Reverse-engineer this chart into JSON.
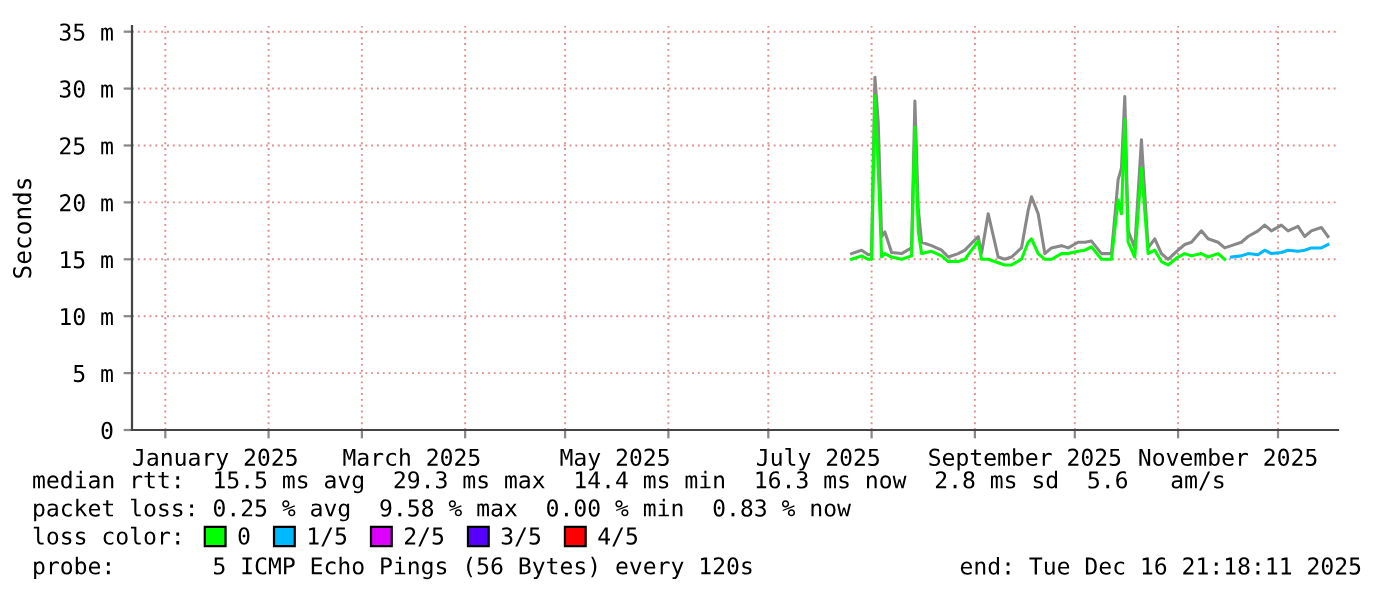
{
  "chart_data": {
    "type": "line",
    "ylabel": "Seconds",
    "x": [
      "2025-07-26",
      "2025-07-29",
      "2025-07-31",
      "2025-08-01",
      "2025-08-02",
      "2025-08-03",
      "2025-08-04",
      "2025-08-05",
      "2025-08-07",
      "2025-08-10",
      "2025-08-13",
      "2025-08-14",
      "2025-08-15",
      "2025-08-16",
      "2025-08-19",
      "2025-08-22",
      "2025-08-24",
      "2025-08-27",
      "2025-08-29",
      "2025-09-02",
      "2025-09-03",
      "2025-09-05",
      "2025-09-08",
      "2025-09-10",
      "2025-09-12",
      "2025-09-15",
      "2025-09-17",
      "2025-09-18",
      "2025-09-20",
      "2025-09-22",
      "2025-09-24",
      "2025-09-27",
      "2025-09-29",
      "2025-10-02",
      "2025-10-04",
      "2025-10-06",
      "2025-10-09",
      "2025-10-12",
      "2025-10-14",
      "2025-10-15",
      "2025-10-16",
      "2025-10-17",
      "2025-10-19",
      "2025-10-21",
      "2025-10-23",
      "2025-10-25",
      "2025-10-27",
      "2025-10-29",
      "2025-11-01",
      "2025-11-03",
      "2025-11-05",
      "2025-11-08",
      "2025-11-10",
      "2025-11-13",
      "2025-11-15",
      "2025-11-17",
      "2025-11-20",
      "2025-11-22",
      "2025-11-25",
      "2025-11-27",
      "2025-11-29",
      "2025-12-02",
      "2025-12-04",
      "2025-12-07",
      "2025-12-09",
      "2025-12-11",
      "2025-12-14",
      "2025-12-16"
    ],
    "series": [
      {
        "color": "#888888",
        "values": [
          15.5,
          15.8,
          15.4,
          15.5,
          31.0,
          27.0,
          17.0,
          17.4,
          15.6,
          15.5,
          16.0,
          28.9,
          19.5,
          16.5,
          16.2,
          15.8,
          15.2,
          15.5,
          15.8,
          17.0,
          15.5,
          19.0,
          15.2,
          15.0,
          15.2,
          16.0,
          19.3,
          20.5,
          19.0,
          15.5,
          16.0,
          16.2,
          16.0,
          16.5,
          16.5,
          16.6,
          15.5,
          15.5,
          22.0,
          23.0,
          29.3,
          17.5,
          16.0,
          25.5,
          16.0,
          16.8,
          15.5,
          15.0,
          15.8,
          16.3,
          16.5,
          17.5,
          16.8,
          16.5,
          16.0,
          16.2,
          16.5,
          17.0,
          17.5,
          18.0,
          17.5,
          18.0,
          17.5,
          17.9,
          17.0,
          17.5,
          17.8,
          17.0
        ]
      },
      {
        "name": "0",
        "color": "#00ff00",
        "values": [
          15.0,
          15.3,
          15.0,
          15.0,
          29.4,
          23.0,
          15.2,
          15.5,
          15.2,
          15.0,
          15.3,
          26.6,
          17.5,
          15.5,
          15.7,
          15.3,
          14.8,
          14.8,
          15.0,
          16.6,
          15.0,
          15.0,
          14.7,
          14.5,
          14.5,
          15.0,
          16.5,
          16.8,
          15.5,
          15.0,
          15.0,
          15.5,
          15.5,
          15.7,
          15.8,
          16.1,
          15.0,
          15.0,
          20.2,
          19.0,
          27.3,
          16.5,
          15.2,
          23.0,
          15.5,
          15.8,
          14.8,
          14.5,
          15.2,
          15.5,
          15.3,
          15.5,
          15.2,
          15.5,
          15.0,
          null,
          null,
          null,
          null,
          null,
          null,
          null,
          null,
          null,
          null,
          null,
          null,
          null
        ]
      },
      {
        "name": "1/5",
        "color": "#00b8ff",
        "values": [
          null,
          null,
          null,
          null,
          null,
          null,
          null,
          null,
          null,
          null,
          null,
          null,
          null,
          null,
          null,
          null,
          null,
          null,
          null,
          null,
          null,
          null,
          null,
          null,
          null,
          null,
          null,
          null,
          null,
          null,
          null,
          null,
          null,
          null,
          null,
          null,
          null,
          null,
          null,
          null,
          null,
          null,
          null,
          null,
          null,
          null,
          null,
          null,
          null,
          null,
          null,
          null,
          null,
          null,
          null,
          15.2,
          15.3,
          15.5,
          15.4,
          15.8,
          15.5,
          15.6,
          15.8,
          15.7,
          15.8,
          16.0,
          16.0,
          16.3
        ]
      },
      {
        "name": "2/5",
        "color": "#dd00ff",
        "values": [
          null,
          null,
          null,
          null,
          null,
          null,
          null,
          null,
          null,
          null,
          null,
          null,
          null,
          null,
          null,
          null,
          null,
          null,
          null,
          null,
          null,
          null,
          null,
          null,
          null,
          null,
          null,
          null,
          null,
          null,
          null,
          null,
          null,
          null,
          null,
          null,
          null,
          null,
          null,
          null,
          null,
          null,
          null,
          null,
          null,
          null,
          null,
          null,
          null,
          null,
          null,
          null,
          null,
          null,
          null,
          null,
          null,
          null,
          null,
          null,
          null,
          null,
          null,
          null,
          null,
          null,
          null,
          null
        ]
      },
      {
        "name": "3/5",
        "color": "#5500ff",
        "values": [
          null,
          null,
          null,
          null,
          null,
          null,
          null,
          null,
          null,
          null,
          null,
          null,
          null,
          null,
          null,
          null,
          null,
          null,
          null,
          null,
          null,
          null,
          null,
          null,
          null,
          null,
          null,
          null,
          null,
          null,
          null,
          null,
          null,
          null,
          null,
          null,
          null,
          null,
          null,
          null,
          null,
          null,
          null,
          null,
          null,
          null,
          null,
          null,
          null,
          null,
          null,
          null,
          null,
          null,
          null,
          null,
          null,
          null,
          null,
          null,
          null,
          null,
          null,
          null,
          null,
          null,
          null,
          null
        ]
      },
      {
        "name": "4/5",
        "color": "#ff0000",
        "values": [
          null,
          null,
          null,
          null,
          null,
          null,
          null,
          null,
          null,
          null,
          null,
          null,
          null,
          null,
          null,
          null,
          null,
          null,
          null,
          null,
          null,
          null,
          null,
          null,
          null,
          null,
          null,
          null,
          null,
          null,
          null,
          null,
          null,
          null,
          null,
          null,
          null,
          null,
          null,
          null,
          null,
          null,
          null,
          null,
          null,
          null,
          null,
          null,
          null,
          null,
          null,
          null,
          null,
          null,
          null,
          null,
          null,
          null,
          null,
          null,
          null,
          null,
          null,
          null,
          null,
          null,
          null,
          null
        ]
      }
    ],
    "xlim": [
      "2024-12-22",
      "2025-12-19"
    ],
    "xticks": [
      {
        "value": "2025-01-01",
        "label": null
      },
      {
        "value": "2025-01-16",
        "label": "January 2025"
      },
      {
        "value": "2025-02-01",
        "label": null
      },
      {
        "value": "2025-03-01",
        "label": null
      },
      {
        "value": "2025-03-16",
        "label": "March 2025"
      },
      {
        "value": "2025-04-01",
        "label": null
      },
      {
        "value": "2025-05-01",
        "label": null
      },
      {
        "value": "2025-05-16",
        "label": "May 2025"
      },
      {
        "value": "2025-06-01",
        "label": null
      },
      {
        "value": "2025-07-01",
        "label": null
      },
      {
        "value": "2025-07-16",
        "label": "July 2025"
      },
      {
        "value": "2025-08-01",
        "label": null
      },
      {
        "value": "2025-09-01",
        "label": null
      },
      {
        "value": "2025-09-16",
        "label": "September 2025"
      },
      {
        "value": "2025-10-01",
        "label": null
      },
      {
        "value": "2025-11-01",
        "label": null
      },
      {
        "value": "2025-11-16",
        "label": "November 2025"
      },
      {
        "value": "2025-12-01",
        "label": null
      }
    ],
    "ylim": [
      0,
      35.5
    ],
    "yticks": [
      0,
      {
        "value": 5,
        "label": "5 m"
      },
      {
        "value": 10,
        "label": "10 m"
      },
      {
        "value": 15,
        "label": "15 m"
      },
      {
        "value": 20,
        "label": "20 m"
      },
      {
        "value": 25,
        "label": "25 m"
      },
      {
        "value": 30,
        "label": "30 m"
      },
      {
        "value": 35,
        "label": "35 m"
      }
    ],
    "grid": true,
    "legend": "bottom",
    "marker": "none",
    "line_style": "solid",
    "annotations": [
      "median rtt:  15.5 ms avg  29.3 ms max  14.4 ms min  16.3 ms now  2.8 ms sd  5.6   am/s",
      "packet loss: 0.25 % avg  9.58 % max  0.00 % min  0.83 % now",
      "loss color:",
      "probe:       5 ICMP Echo Pings (56 Bytes) every 120s",
      "end: Tue Dec 16 21:18:11 2025"
    ]
  }
}
